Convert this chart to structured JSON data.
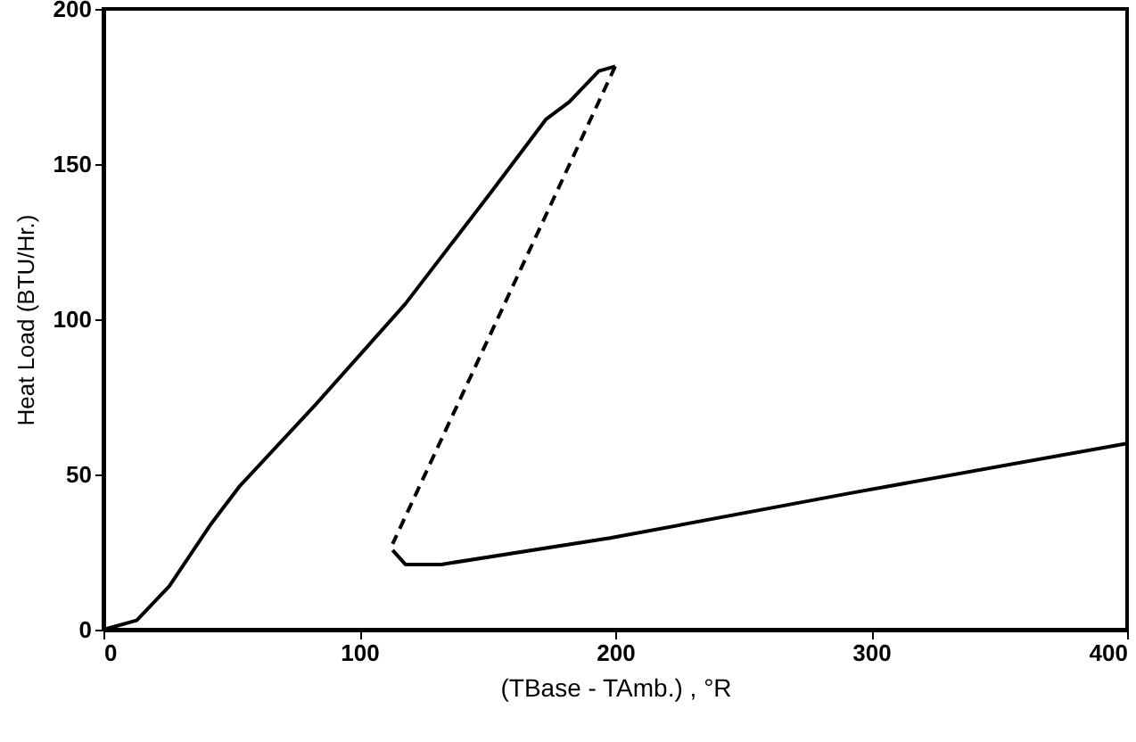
{
  "chart_data": {
    "type": "line",
    "xlabel": "(TBase - TAmb.) , °R",
    "ylabel": "Heat Load (BTU/Hr.)",
    "xlim": [
      0,
      400
    ],
    "xticks": [
      0,
      100,
      200,
      300,
      400
    ],
    "ylim": [
      0,
      200
    ],
    "yticks": [
      0,
      50,
      100,
      150,
      200
    ],
    "grid": false,
    "marker": "none",
    "series": [
      {
        "color": "#000000",
        "line_style": "solid",
        "x": [
          0,
          13,
          25.7,
          42,
          53,
          83,
          118,
          152,
          173,
          182,
          193.6,
          200
        ],
        "values": [
          0,
          3,
          14,
          34,
          46,
          72.6,
          105,
          141.5,
          164.5,
          170,
          180,
          181.5
        ]
      },
      {
        "color": "#000000",
        "line_style": "dashed",
        "x": [
          200,
          113
        ],
        "values": [
          181.5,
          27.6
        ]
      },
      {
        "color": "#000000",
        "line_style": "solid",
        "x": [
          113,
          118,
          132,
          198,
          292,
          400
        ],
        "values": [
          25.6,
          21,
          21,
          29.5,
          44,
          60
        ]
      }
    ]
  }
}
